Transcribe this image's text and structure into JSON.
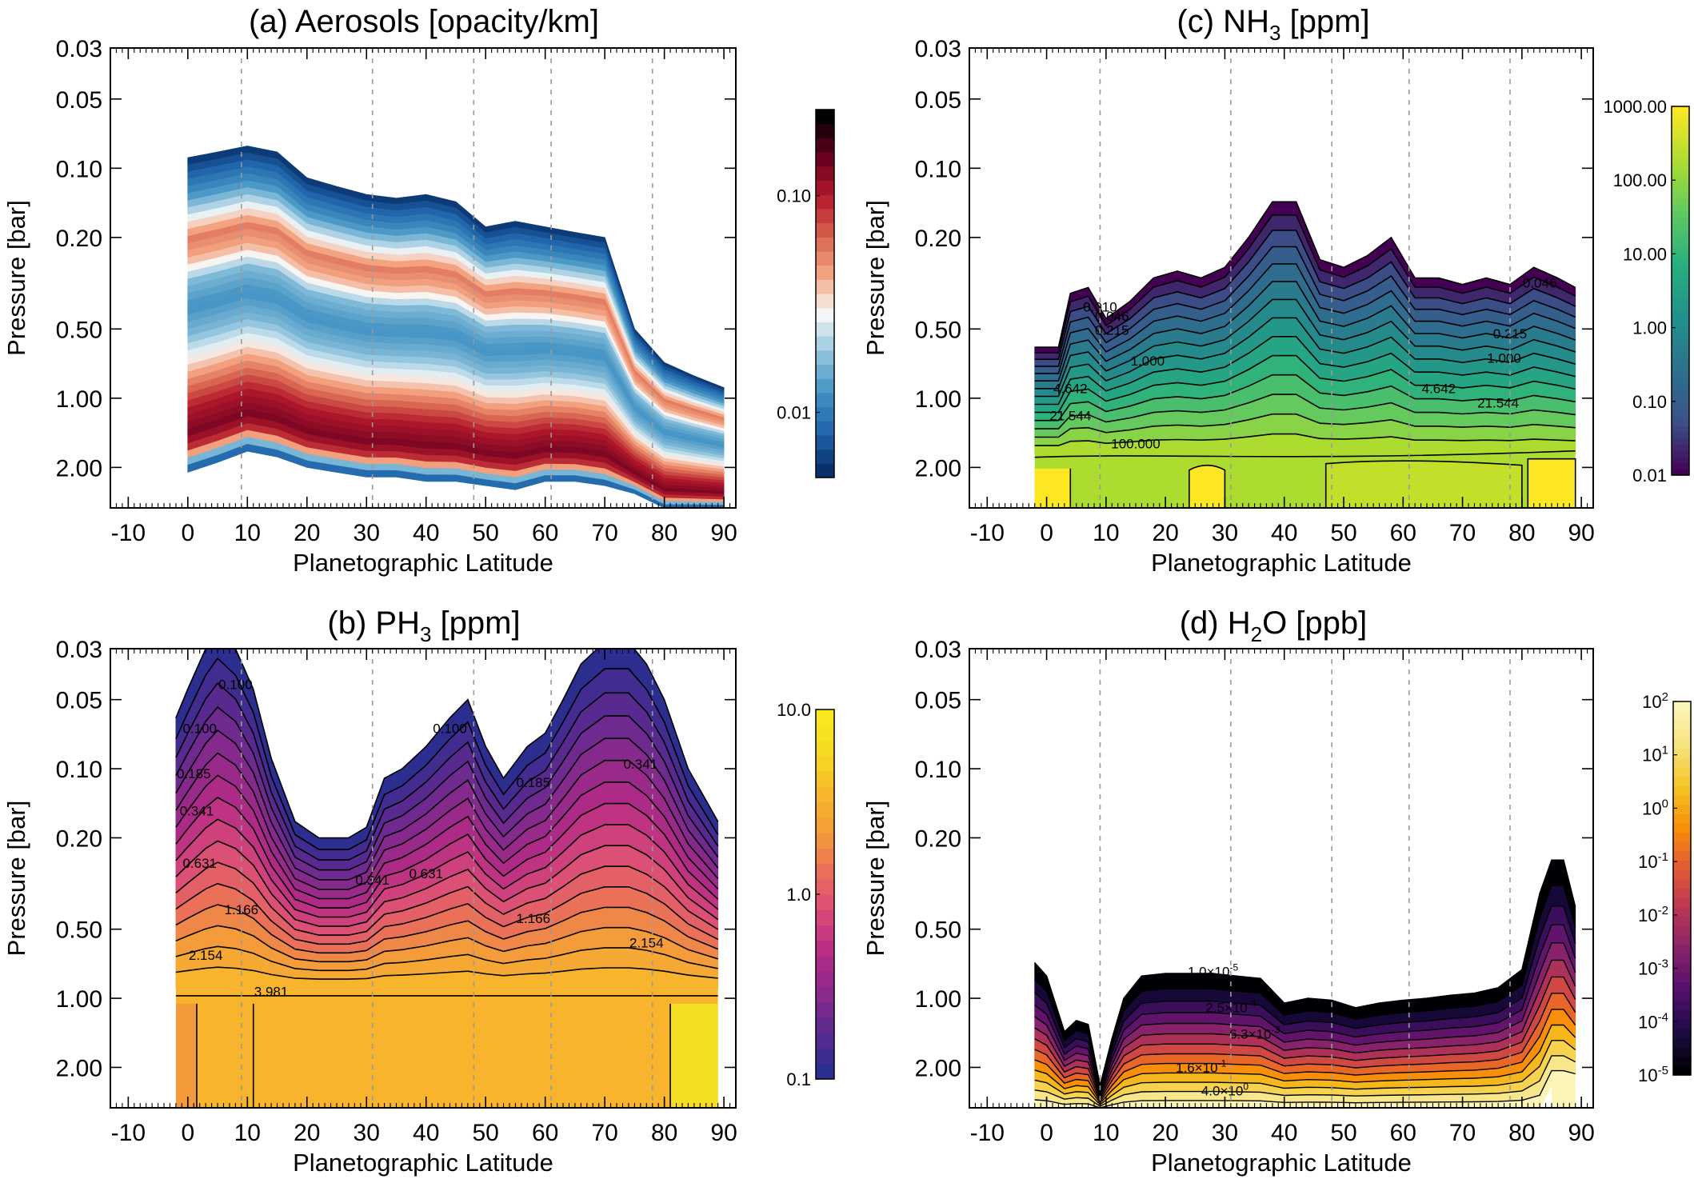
{
  "chart_data": [
    {
      "id": "a",
      "type": "contour",
      "title": "(a) Aerosols [opacity/km]",
      "title_parts": [
        "(a) Aerosols [opacity/km]"
      ],
      "xlabel": "Planetographic Latitude",
      "ylabel": "Pressure [bar]",
      "xlim": [
        -13,
        92
      ],
      "ylim": [
        3.0,
        0.03
      ],
      "yscale": "log",
      "xticks": [
        -10,
        0,
        10,
        20,
        30,
        40,
        50,
        60,
        70,
        80,
        90
      ],
      "yticks": [
        0.03,
        0.05,
        0.1,
        0.2,
        0.5,
        1.0,
        2.0
      ],
      "ytick_labels": [
        "0.03",
        "0.05",
        "0.10",
        "0.20",
        "0.50",
        "1.00",
        "2.00"
      ],
      "guide_latitudes": [
        9,
        31,
        48,
        61,
        78
      ],
      "colormap": "blue-white-red",
      "colors": [
        "#08306b",
        "#2166ac",
        "#4393c3",
        "#92c5de",
        "#f7f7f7",
        "#f4a582",
        "#d6604d",
        "#b2182b",
        "#67001f",
        "#000000"
      ],
      "colorbar": {
        "scale": "log",
        "range": [
          0.005,
          0.25
        ],
        "ticks": [
          0.01,
          0.1
        ],
        "tick_labels": [
          "0.01",
          "0.10"
        ]
      },
      "latitude": [
        0,
        5,
        10,
        15,
        20,
        25,
        30,
        35,
        40,
        45,
        50,
        55,
        60,
        65,
        70,
        75,
        80,
        85,
        90
      ],
      "top_boundary_bar": [
        0.09,
        0.085,
        0.08,
        0.085,
        0.11,
        0.12,
        0.13,
        0.135,
        0.13,
        0.14,
        0.18,
        0.17,
        0.18,
        0.19,
        0.2,
        0.5,
        0.7,
        0.8,
        0.9
      ],
      "bottom_boundary_bar": [
        2.1,
        1.9,
        1.7,
        1.8,
        2.0,
        2.1,
        2.2,
        2.2,
        2.3,
        2.3,
        2.4,
        2.5,
        2.3,
        2.3,
        2.4,
        2.6,
        3.0,
        3.0,
        3.0
      ],
      "peak_layer_bar": [
        1.5,
        1.4,
        1.2,
        1.3,
        1.45,
        1.55,
        1.6,
        1.6,
        1.65,
        1.7,
        1.7,
        1.75,
        1.7,
        1.75,
        1.8,
        2.0,
        2.2,
        2.5,
        2.7
      ],
      "upper_haze_bar": [
        0.16,
        0.155,
        0.15,
        0.16,
        0.22,
        0.25,
        0.27,
        0.28,
        0.28,
        0.29,
        0.31,
        0.31,
        0.32,
        0.33,
        0.35,
        0.6,
        0.8,
        0.9,
        1.0
      ]
    },
    {
      "id": "b",
      "type": "contour",
      "title": "(b) PH3 [ppm]",
      "title_parts": [
        "(b) PH",
        "3",
        " [ppm]"
      ],
      "xlabel": "Planetographic Latitude",
      "ylabel": "Pressure [bar]",
      "xlim": [
        -13,
        92
      ],
      "ylim": [
        3.0,
        0.03
      ],
      "yscale": "log",
      "xticks": [
        -10,
        0,
        10,
        20,
        30,
        40,
        50,
        60,
        70,
        80,
        90
      ],
      "yticks": [
        0.03,
        0.05,
        0.1,
        0.2,
        0.5,
        1.0,
        2.0
      ],
      "ytick_labels": [
        "0.03",
        "0.05",
        "0.10",
        "0.20",
        "0.50",
        "1.00",
        "2.00"
      ],
      "guide_latitudes": [
        9,
        31,
        48,
        61,
        78
      ],
      "colormap": "plasma",
      "colors": [
        "#2c2e8f",
        "#5b2a8f",
        "#8b2a8c",
        "#b62b86",
        "#d8497a",
        "#e96b5c",
        "#f39a3a",
        "#f7b42c",
        "#f4d821",
        "#f7e81f"
      ],
      "colorbar": {
        "scale": "log",
        "range": [
          0.1,
          10.0
        ],
        "ticks": [
          0.1,
          1.0,
          10.0
        ],
        "tick_labels": [
          "0.1",
          "1.0",
          "10.0"
        ]
      },
      "contour_labels": [
        "0.100",
        "0.185",
        "0.341",
        "0.631",
        "1.166",
        "2.154",
        "3.981"
      ],
      "latitude": [
        -2,
        0,
        3,
        5,
        8,
        11,
        14,
        18,
        22,
        27,
        30,
        33,
        36,
        40,
        44,
        47,
        50,
        53,
        57,
        60,
        63,
        66,
        70,
        74,
        77,
        80,
        84,
        89
      ],
      "top_boundary_bar": [
        0.06,
        0.045,
        0.03,
        0.025,
        0.03,
        0.045,
        0.09,
        0.17,
        0.2,
        0.2,
        0.18,
        0.11,
        0.1,
        0.08,
        0.06,
        0.05,
        0.08,
        0.11,
        0.08,
        0.07,
        0.05,
        0.035,
        0.028,
        0.028,
        0.035,
        0.05,
        0.1,
        0.17
      ],
      "iso_level_labels_ppm": [
        0.1,
        0.185,
        0.341,
        0.631,
        1.166,
        2.154,
        3.981
      ]
    },
    {
      "id": "c",
      "type": "contour",
      "title": "(c) NH3 [ppm]",
      "title_parts": [
        "(c) NH",
        "3",
        " [ppm]"
      ],
      "xlabel": "Planetographic Latitude",
      "ylabel": "Pressure [bar]",
      "xlim": [
        -13,
        92
      ],
      "ylim": [
        3.0,
        0.03
      ],
      "yscale": "log",
      "xticks": [
        -10,
        0,
        10,
        20,
        30,
        40,
        50,
        60,
        70,
        80,
        90
      ],
      "yticks": [
        0.03,
        0.05,
        0.1,
        0.2,
        0.5,
        1.0,
        2.0
      ],
      "ytick_labels": [
        "0.03",
        "0.05",
        "0.10",
        "0.20",
        "0.50",
        "1.00",
        "2.00"
      ],
      "guide_latitudes": [
        9,
        31,
        48,
        61,
        78
      ],
      "colormap": "viridis",
      "colors": [
        "#440154",
        "#3b528b",
        "#2c728e",
        "#21918c",
        "#28ae80",
        "#5ec962",
        "#addc30",
        "#fde725"
      ],
      "colorbar": {
        "scale": "log",
        "range": [
          0.01,
          1000.0
        ],
        "ticks": [
          0.01,
          0.1,
          1.0,
          10.0,
          100.0,
          1000.0
        ],
        "tick_labels": [
          "0.01",
          "0.10",
          "1.00",
          "10.00",
          "100.00",
          "1000.00"
        ]
      },
      "contour_labels": [
        "0.010",
        "0.046",
        "0.215",
        "1.000",
        "4.642",
        "21.544",
        "100.000",
        "0.046",
        "0.215",
        "1.000",
        "4.642",
        "21.544"
      ],
      "latitude": [
        -2,
        2,
        4,
        7,
        10,
        14,
        18,
        22,
        26,
        30,
        34,
        38,
        42,
        46,
        50,
        54,
        58,
        62,
        66,
        70,
        74,
        78,
        82,
        86,
        89
      ],
      "top_boundary_bar": [
        0.6,
        0.6,
        0.35,
        0.33,
        0.45,
        0.38,
        0.3,
        0.28,
        0.3,
        0.27,
        0.2,
        0.14,
        0.14,
        0.25,
        0.27,
        0.24,
        0.2,
        0.3,
        0.3,
        0.32,
        0.3,
        0.32,
        0.27,
        0.3,
        0.33
      ]
    },
    {
      "id": "d",
      "type": "contour",
      "title": "(d) H2O [ppb]",
      "title_parts": [
        "(d) H",
        "2",
        "O [ppb]"
      ],
      "xlabel": "Planetographic Latitude",
      "ylabel": "Pressure [bar]",
      "xlim": [
        -13,
        92
      ],
      "ylim": [
        3.0,
        0.03
      ],
      "yscale": "log",
      "xticks": [
        -10,
        0,
        10,
        20,
        30,
        40,
        50,
        60,
        70,
        80,
        90
      ],
      "yticks": [
        0.03,
        0.05,
        0.1,
        0.2,
        0.5,
        1.0,
        2.0
      ],
      "ytick_labels": [
        "0.03",
        "0.05",
        "0.10",
        "0.20",
        "0.50",
        "1.00",
        "2.00"
      ],
      "guide_latitudes": [
        9,
        31,
        48,
        61,
        78
      ],
      "colormap": "inferno",
      "colors": [
        "#000004",
        "#1f0c48",
        "#550f6d",
        "#88226a",
        "#ba3655",
        "#e35933",
        "#f98e09",
        "#f5c423",
        "#f7e27a",
        "#fcf5b8"
      ],
      "colorbar": {
        "scale": "log",
        "range": [
          1e-05,
          100
        ],
        "ticks": [
          "10^-5",
          "10^-4",
          "10^-3",
          "10^-2",
          "10^-1",
          "10^0",
          "10^1",
          "10^2"
        ]
      },
      "contour_labels": [
        "1.0×10^-5",
        "2.5×10^-4",
        "6.3×10^-3",
        "1.6×10^-1",
        "4.0×10^0"
      ],
      "latitude": [
        -2,
        0,
        3,
        5,
        7,
        9,
        11,
        13,
        16,
        20,
        24,
        28,
        32,
        36,
        40,
        44,
        48,
        52,
        56,
        60,
        64,
        68,
        72,
        76,
        80,
        83,
        85,
        87,
        89
      ],
      "top_boundary_bar": [
        0.7,
        0.8,
        1.4,
        1.25,
        1.3,
        2.4,
        1.5,
        1.0,
        0.8,
        0.78,
        0.78,
        0.78,
        0.8,
        0.82,
        1.05,
        1.0,
        1.02,
        1.1,
        1.05,
        1.02,
        1.0,
        0.97,
        0.95,
        0.9,
        0.75,
        0.35,
        0.25,
        0.25,
        0.4
      ]
    }
  ]
}
